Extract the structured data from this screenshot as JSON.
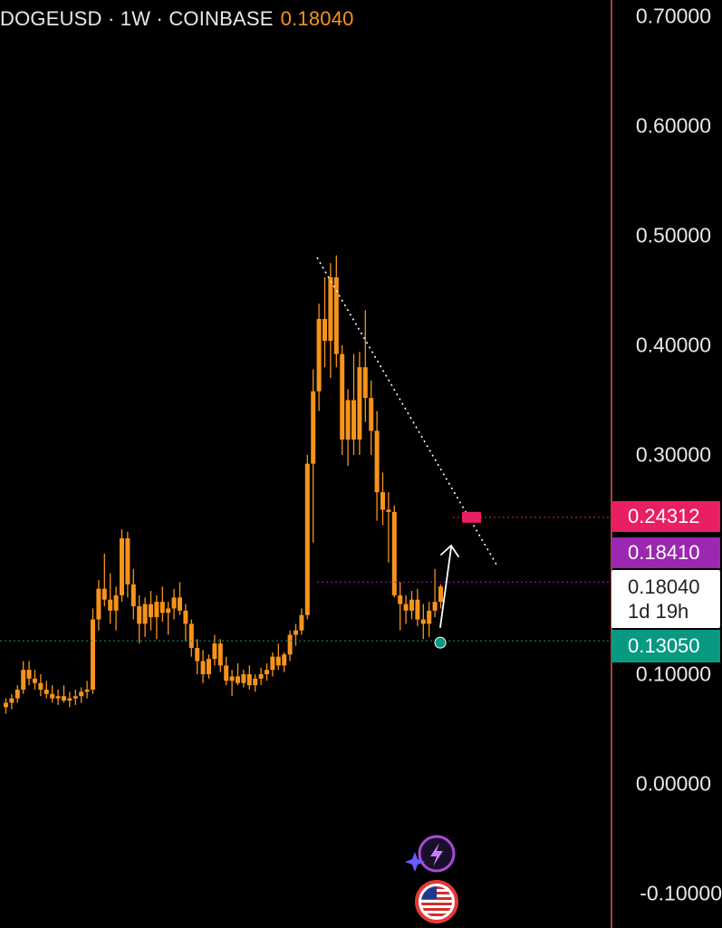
{
  "header": {
    "symbol_line": "DOGEUSD · 1W · COINBASE",
    "last_price": "0.18040"
  },
  "price_axis": {
    "ticks": [
      "0.70000",
      "0.60000",
      "0.50000",
      "0.40000",
      "0.30000",
      "0.10000",
      "0.00000",
      "-0.10000"
    ]
  },
  "badges": {
    "target": "0.24312",
    "ma": "0.18410",
    "current": "0.18040",
    "countdown": "1d 19h",
    "support": "0.13050"
  },
  "colors": {
    "candle": "#f7931a",
    "axis_line": "#e05a4a",
    "target": "#e91e63",
    "ma": "#9c27b0",
    "support": "#089981"
  },
  "icons": [
    "lightning-sparkle-icon",
    "us-flag-icon"
  ],
  "chart_data": {
    "type": "candlestick",
    "title": "DOGEUSD · 1W · COINBASE",
    "ylim": [
      -0.1,
      0.7
    ],
    "levels": {
      "target": 0.24312,
      "ma": 0.1841,
      "current": 0.1804,
      "support": 0.1305
    },
    "trendline": [
      [
        0,
        0.48
      ],
      [
        1,
        0.21
      ]
    ],
    "candles": [
      [
        0.07,
        0.078,
        0.064,
        0.074
      ],
      [
        0.074,
        0.082,
        0.068,
        0.078
      ],
      [
        0.078,
        0.09,
        0.074,
        0.086
      ],
      [
        0.086,
        0.112,
        0.082,
        0.104
      ],
      [
        0.104,
        0.112,
        0.09,
        0.096
      ],
      [
        0.096,
        0.104,
        0.086,
        0.092
      ],
      [
        0.092,
        0.1,
        0.08,
        0.086
      ],
      [
        0.086,
        0.094,
        0.078,
        0.082
      ],
      [
        0.082,
        0.09,
        0.074,
        0.078
      ],
      [
        0.078,
        0.086,
        0.072,
        0.08
      ],
      [
        0.08,
        0.09,
        0.074,
        0.076
      ],
      [
        0.076,
        0.084,
        0.07,
        0.078
      ],
      [
        0.078,
        0.086,
        0.072,
        0.08
      ],
      [
        0.08,
        0.088,
        0.074,
        0.084
      ],
      [
        0.084,
        0.094,
        0.078,
        0.086
      ],
      [
        0.086,
        0.16,
        0.082,
        0.15
      ],
      [
        0.15,
        0.186,
        0.14,
        0.178
      ],
      [
        0.178,
        0.21,
        0.162,
        0.168
      ],
      [
        0.168,
        0.192,
        0.146,
        0.158
      ],
      [
        0.158,
        0.18,
        0.14,
        0.172
      ],
      [
        0.172,
        0.232,
        0.166,
        0.224
      ],
      [
        0.224,
        0.23,
        0.17,
        0.182
      ],
      [
        0.182,
        0.196,
        0.15,
        0.162
      ],
      [
        0.162,
        0.172,
        0.128,
        0.146
      ],
      [
        0.146,
        0.17,
        0.134,
        0.164
      ],
      [
        0.164,
        0.176,
        0.14,
        0.152
      ],
      [
        0.152,
        0.172,
        0.132,
        0.166
      ],
      [
        0.166,
        0.18,
        0.148,
        0.156
      ],
      [
        0.156,
        0.166,
        0.136,
        0.16
      ],
      [
        0.16,
        0.178,
        0.15,
        0.17
      ],
      [
        0.17,
        0.184,
        0.154,
        0.158
      ],
      [
        0.158,
        0.164,
        0.13,
        0.146
      ],
      [
        0.146,
        0.15,
        0.116,
        0.124
      ],
      [
        0.124,
        0.132,
        0.1,
        0.112
      ],
      [
        0.112,
        0.122,
        0.092,
        0.1
      ],
      [
        0.1,
        0.118,
        0.096,
        0.114
      ],
      [
        0.114,
        0.136,
        0.108,
        0.128
      ],
      [
        0.128,
        0.132,
        0.102,
        0.108
      ],
      [
        0.108,
        0.116,
        0.09,
        0.094
      ],
      [
        0.094,
        0.104,
        0.08,
        0.098
      ],
      [
        0.098,
        0.11,
        0.09,
        0.092
      ],
      [
        0.092,
        0.104,
        0.088,
        0.1
      ],
      [
        0.1,
        0.108,
        0.086,
        0.09
      ],
      [
        0.09,
        0.1,
        0.084,
        0.096
      ],
      [
        0.096,
        0.106,
        0.09,
        0.1
      ],
      [
        0.1,
        0.11,
        0.094,
        0.104
      ],
      [
        0.104,
        0.12,
        0.098,
        0.116
      ],
      [
        0.116,
        0.128,
        0.104,
        0.108
      ],
      [
        0.108,
        0.12,
        0.102,
        0.118
      ],
      [
        0.118,
        0.14,
        0.112,
        0.136
      ],
      [
        0.136,
        0.146,
        0.126,
        0.14
      ],
      [
        0.14,
        0.16,
        0.136,
        0.154
      ],
      [
        0.154,
        0.3,
        0.15,
        0.292
      ],
      [
        0.292,
        0.378,
        0.22,
        0.358
      ],
      [
        0.358,
        0.438,
        0.34,
        0.424
      ],
      [
        0.424,
        0.462,
        0.38,
        0.404
      ],
      [
        0.404,
        0.475,
        0.37,
        0.462
      ],
      [
        0.462,
        0.482,
        0.38,
        0.392
      ],
      [
        0.392,
        0.4,
        0.3,
        0.314
      ],
      [
        0.314,
        0.36,
        0.29,
        0.35
      ],
      [
        0.35,
        0.392,
        0.3,
        0.314
      ],
      [
        0.314,
        0.394,
        0.3,
        0.38
      ],
      [
        0.38,
        0.432,
        0.33,
        0.352
      ],
      [
        0.352,
        0.368,
        0.3,
        0.322
      ],
      [
        0.322,
        0.34,
        0.24,
        0.266
      ],
      [
        0.266,
        0.284,
        0.236,
        0.25
      ],
      [
        0.25,
        0.266,
        0.202,
        0.248
      ],
      [
        0.248,
        0.254,
        0.17,
        0.172
      ],
      [
        0.172,
        0.184,
        0.14,
        0.164
      ],
      [
        0.164,
        0.172,
        0.146,
        0.158
      ],
      [
        0.158,
        0.176,
        0.15,
        0.168
      ],
      [
        0.168,
        0.178,
        0.144,
        0.15
      ],
      [
        0.15,
        0.164,
        0.132,
        0.146
      ],
      [
        0.146,
        0.166,
        0.134,
        0.158
      ],
      [
        0.158,
        0.196,
        0.152,
        0.166
      ],
      [
        0.166,
        0.182,
        0.16,
        0.18
      ]
    ]
  }
}
